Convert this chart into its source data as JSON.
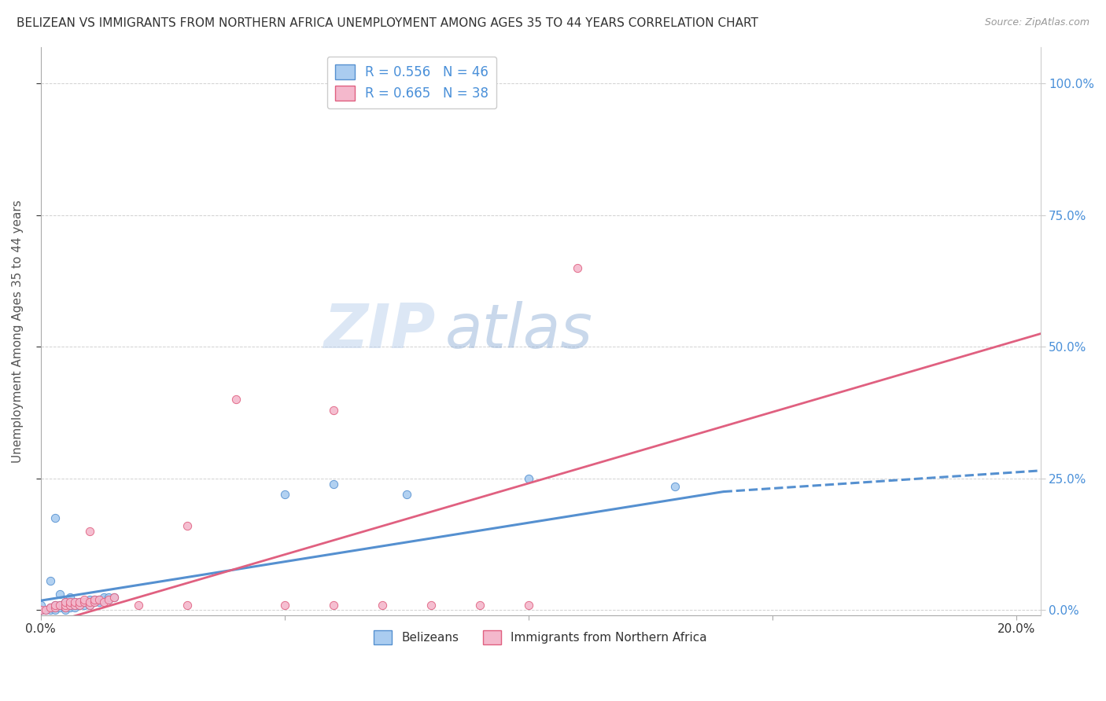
{
  "title": "BELIZEAN VS IMMIGRANTS FROM NORTHERN AFRICA UNEMPLOYMENT AMONG AGES 35 TO 44 YEARS CORRELATION CHART",
  "source": "Source: ZipAtlas.com",
  "ylabel": "Unemployment Among Ages 35 to 44 years",
  "belizean_R": 0.556,
  "belizean_N": 46,
  "northern_africa_R": 0.665,
  "northern_africa_N": 38,
  "belizean_color": "#aaccf0",
  "northern_africa_color": "#f4b8cc",
  "belizean_line_color": "#5590d0",
  "northern_africa_line_color": "#e06080",
  "watermark_zip": "ZIP",
  "watermark_atlas": "atlas",
  "background_color": "#ffffff",
  "grid_color": "#cccccc",
  "belizean_scatter": [
    [
      0.0,
      0.0
    ],
    [
      0.0,
      0.0
    ],
    [
      0.001,
      0.0
    ],
    [
      0.002,
      0.0
    ],
    [
      0.002,
      0.005
    ],
    [
      0.003,
      0.0
    ],
    [
      0.003,
      0.005
    ],
    [
      0.003,
      0.01
    ],
    [
      0.004,
      0.005
    ],
    [
      0.004,
      0.01
    ],
    [
      0.005,
      0.0
    ],
    [
      0.005,
      0.005
    ],
    [
      0.005,
      0.01
    ],
    [
      0.005,
      0.015
    ],
    [
      0.006,
      0.005
    ],
    [
      0.006,
      0.01
    ],
    [
      0.006,
      0.015
    ],
    [
      0.007,
      0.005
    ],
    [
      0.007,
      0.01
    ],
    [
      0.007,
      0.015
    ],
    [
      0.008,
      0.01
    ],
    [
      0.008,
      0.015
    ],
    [
      0.009,
      0.01
    ],
    [
      0.009,
      0.015
    ],
    [
      0.01,
      0.01
    ],
    [
      0.01,
      0.015
    ],
    [
      0.01,
      0.02
    ],
    [
      0.011,
      0.015
    ],
    [
      0.011,
      0.02
    ],
    [
      0.012,
      0.015
    ],
    [
      0.012,
      0.02
    ],
    [
      0.013,
      0.02
    ],
    [
      0.013,
      0.025
    ],
    [
      0.014,
      0.02
    ],
    [
      0.014,
      0.025
    ],
    [
      0.015,
      0.025
    ],
    [
      0.002,
      0.055
    ],
    [
      0.003,
      0.175
    ],
    [
      0.05,
      0.22
    ],
    [
      0.06,
      0.24
    ],
    [
      0.075,
      0.22
    ],
    [
      0.1,
      0.25
    ],
    [
      0.13,
      0.235
    ],
    [
      0.0,
      0.01
    ],
    [
      0.004,
      0.03
    ],
    [
      0.006,
      0.025
    ]
  ],
  "northern_africa_scatter": [
    [
      0.0,
      0.0
    ],
    [
      0.001,
      0.0
    ],
    [
      0.002,
      0.005
    ],
    [
      0.003,
      0.005
    ],
    [
      0.003,
      0.01
    ],
    [
      0.004,
      0.01
    ],
    [
      0.005,
      0.005
    ],
    [
      0.005,
      0.01
    ],
    [
      0.005,
      0.015
    ],
    [
      0.006,
      0.01
    ],
    [
      0.006,
      0.015
    ],
    [
      0.007,
      0.01
    ],
    [
      0.007,
      0.015
    ],
    [
      0.008,
      0.01
    ],
    [
      0.008,
      0.015
    ],
    [
      0.009,
      0.015
    ],
    [
      0.009,
      0.02
    ],
    [
      0.01,
      0.01
    ],
    [
      0.01,
      0.015
    ],
    [
      0.01,
      0.15
    ],
    [
      0.011,
      0.015
    ],
    [
      0.011,
      0.02
    ],
    [
      0.012,
      0.02
    ],
    [
      0.013,
      0.015
    ],
    [
      0.014,
      0.02
    ],
    [
      0.015,
      0.025
    ],
    [
      0.04,
      0.4
    ],
    [
      0.05,
      0.01
    ],
    [
      0.06,
      0.01
    ],
    [
      0.07,
      0.01
    ],
    [
      0.08,
      0.01
    ],
    [
      0.09,
      0.01
    ],
    [
      0.1,
      0.01
    ],
    [
      0.11,
      0.65
    ],
    [
      0.06,
      0.38
    ],
    [
      0.03,
      0.16
    ],
    [
      0.03,
      0.01
    ],
    [
      0.02,
      0.01
    ]
  ],
  "xlim": [
    0.0,
    0.205
  ],
  "ylim": [
    -0.01,
    1.07
  ],
  "xticks": [
    0.0,
    0.05,
    0.1,
    0.15,
    0.2
  ],
  "xtick_labels": [
    "0.0%",
    "",
    "",
    "",
    "20.0%"
  ],
  "yticks": [
    0.0,
    0.25,
    0.5,
    0.75,
    1.0
  ],
  "ytick_labels_right": [
    "0.0%",
    "25.0%",
    "50.0%",
    "75.0%",
    "100.0%"
  ]
}
